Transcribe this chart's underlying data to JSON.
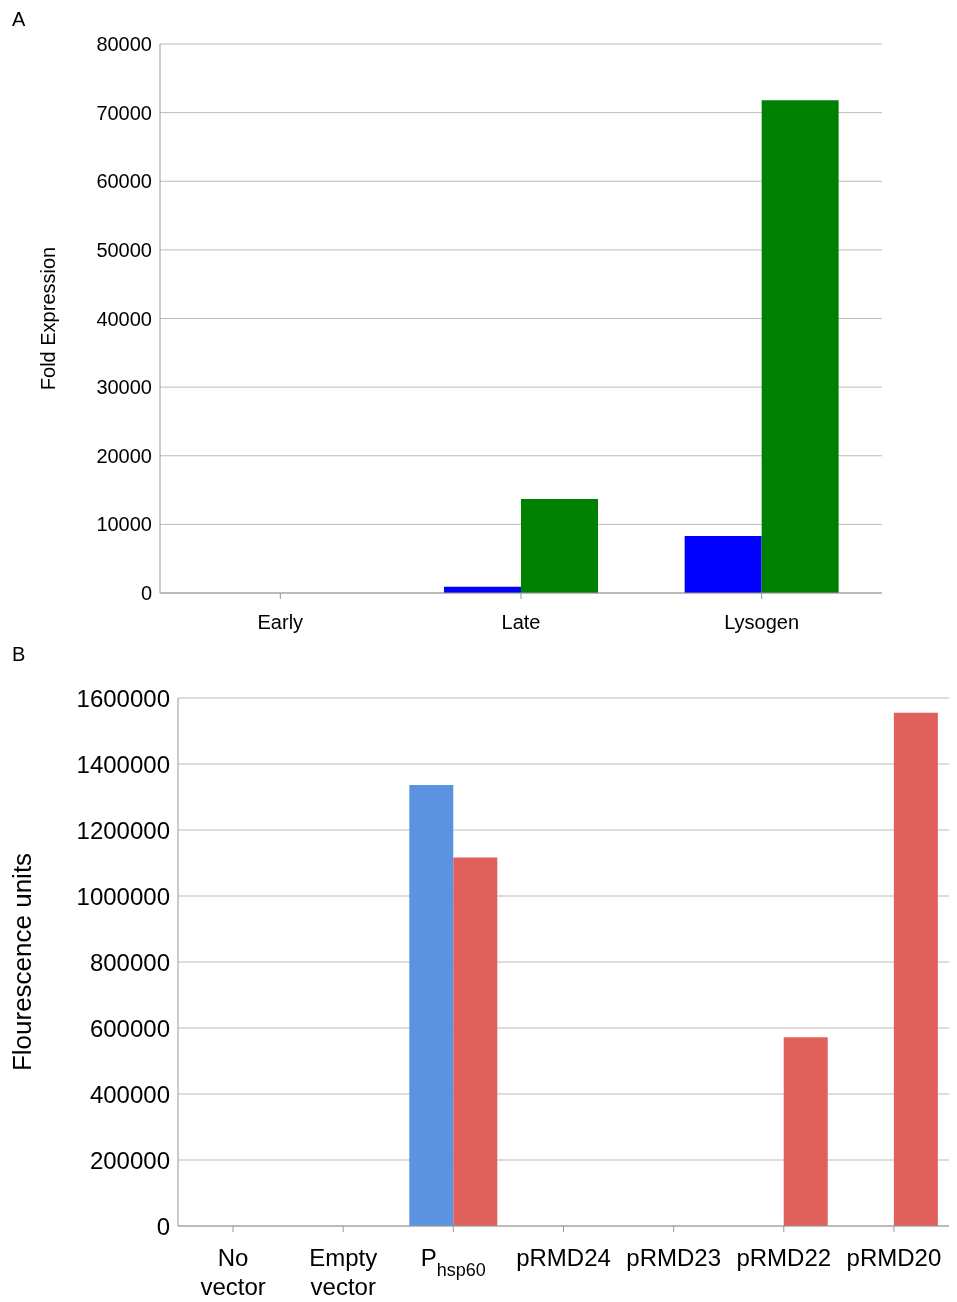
{
  "chart_data": [
    {
      "type": "bar",
      "title": "A",
      "ylabel": "Fold Expression",
      "categories": [
        "Early",
        "Late",
        "Lysogen"
      ],
      "series": [
        {
          "color": "#0000ff",
          "values": [
            0,
            900,
            8300
          ]
        },
        {
          "color": "#008000",
          "values": [
            0,
            13700,
            71800
          ]
        }
      ],
      "ylim": [
        0,
        80000
      ],
      "yticks": [
        0,
        10000,
        20000,
        30000,
        40000,
        50000,
        60000,
        70000,
        80000
      ],
      "grid": "y",
      "legend": false
    },
    {
      "type": "bar",
      "title": "B",
      "ylabel": "Flourescence units",
      "categories": [
        "No vector",
        "Empty vector",
        "P$_{hsp60}$",
        "pRMD24",
        "pRMD23",
        "pRMD22",
        "pRMD20"
      ],
      "series": [
        {
          "color": "#5b93e0",
          "values": [
            0,
            0,
            1336000,
            0,
            0,
            0,
            0
          ]
        },
        {
          "color": "#e0605c",
          "values": [
            0,
            0,
            1117000,
            0,
            0,
            572000,
            1555000
          ]
        }
      ],
      "ylim": [
        0,
        1600000
      ],
      "yticks": [
        0,
        200000,
        400000,
        600000,
        800000,
        1000000,
        1200000,
        1400000,
        1600000
      ],
      "grid": "y",
      "legend": false
    }
  ]
}
